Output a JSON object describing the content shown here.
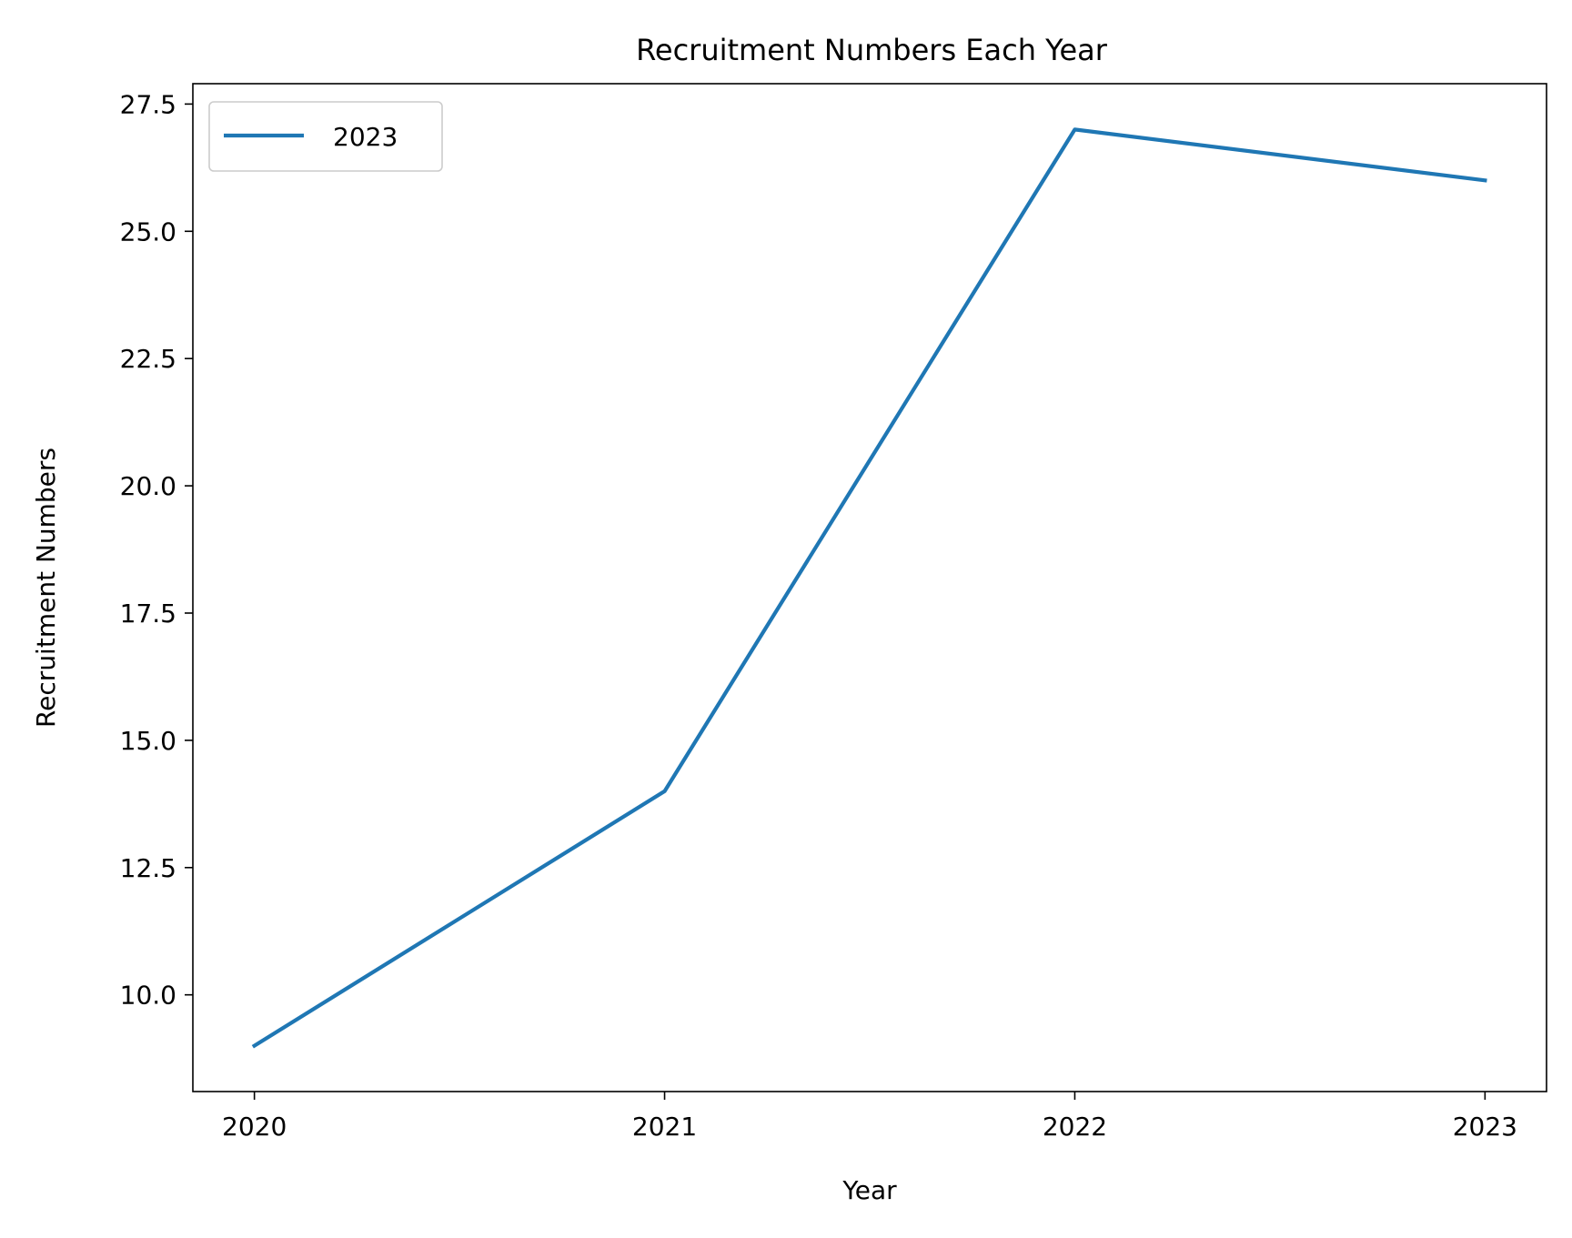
{
  "chart_data": {
    "type": "line",
    "title": "Recruitment Numbers Each Year",
    "xlabel": "Year",
    "ylabel": "Recruitment Numbers",
    "categories": [
      "2020",
      "2021",
      "2022",
      "2023"
    ],
    "x": [
      2020,
      2021,
      2022,
      2023
    ],
    "series": [
      {
        "name": "2023",
        "values": [
          9,
          14,
          27,
          26
        ],
        "color": "#1f77b4"
      }
    ],
    "ylim": [
      8.1,
      27.9
    ],
    "xlim": [
      2019.85,
      2023.15
    ],
    "yticks": [
      10.0,
      12.5,
      15.0,
      17.5,
      20.0,
      22.5,
      25.0,
      27.5
    ],
    "ytick_labels": [
      "10.0",
      "12.5",
      "15.0",
      "17.5",
      "20.0",
      "22.5",
      "25.0",
      "27.5"
    ],
    "xticks": [
      2020,
      2021,
      2022,
      2023
    ],
    "xtick_labels": [
      "2020",
      "2021",
      "2022",
      "2023"
    ],
    "grid": false,
    "legend_position": "upper-left"
  }
}
